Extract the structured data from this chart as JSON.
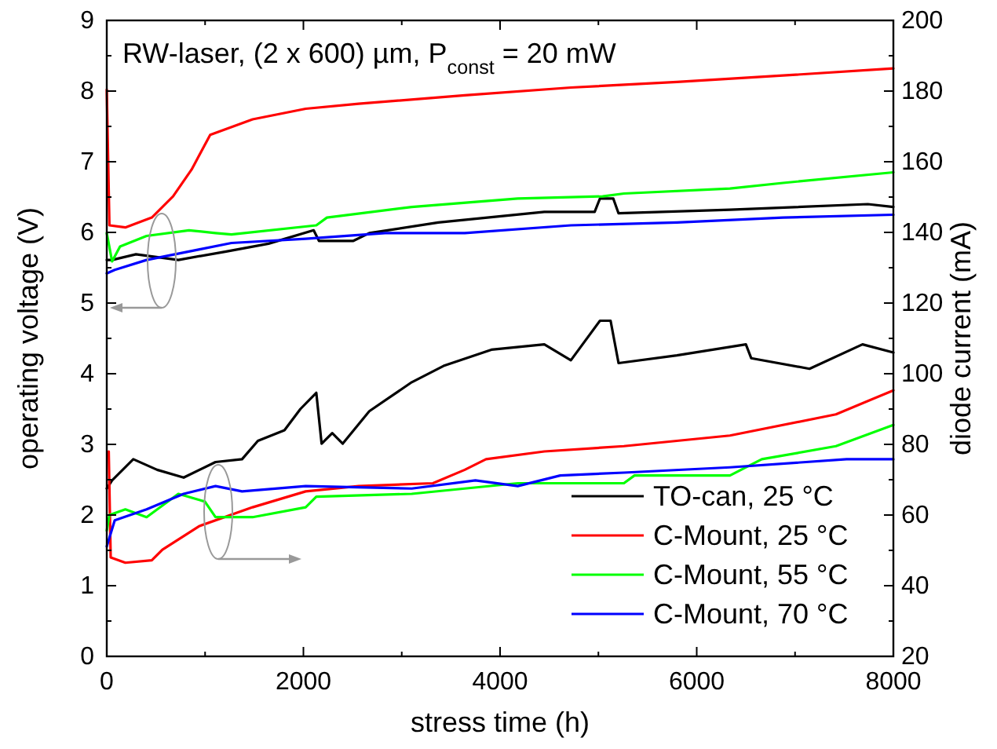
{
  "chart_data": {
    "type": "line",
    "xlabel": "stress time (h)",
    "ylabel": "operating voltage (V)",
    "y2label": "diode current (mA)",
    "annotations": [
      "RW-laser, (2 x 600) µm, P$_{const}$ = 20 mW"
    ],
    "xlim": [
      0,
      8000
    ],
    "xticks": [
      0,
      {
        "value": 1000,
        "label": null
      },
      2000,
      {
        "value": 3000,
        "label": null
      },
      4000,
      {
        "value": 5000,
        "label": null
      },
      6000,
      {
        "value": 7000,
        "label": null
      },
      8000
    ],
    "ylim": [
      0,
      9
    ],
    "yticks": [
      0,
      1,
      2,
      3,
      4,
      5,
      6,
      7,
      8,
      9
    ],
    "y2lim": [
      20,
      200
    ],
    "y2ticks": [
      20,
      40,
      60,
      80,
      100,
      120,
      140,
      160,
      180,
      200
    ],
    "legend": "bottom right",
    "grid": false,
    "line_style": "solid",
    "marker": "none",
    "series": [
      {
        "color": "#000000",
        "x": [
          0,
          54,
          297,
          728,
          1214,
          1645,
          2104,
          2158,
          2508,
          2670,
          3371,
          4450,
          4962,
          5016,
          5151,
          5205,
          6338,
          7740,
          8000
        ],
        "values": [
          5.61,
          5.61,
          5.69,
          5.61,
          5.73,
          5.84,
          6.03,
          5.88,
          5.88,
          5.99,
          6.14,
          6.29,
          6.29,
          6.48,
          6.48,
          6.27,
          6.32,
          6.4,
          6.36
        ]
      },
      {
        "color": "#ff0000",
        "x": [
          0,
          27,
          189,
          458,
          674,
          863,
          1052,
          1483,
          2023,
          2562,
          3641,
          4720,
          5799,
          6877,
          8000
        ],
        "values": [
          8.02,
          6.1,
          6.07,
          6.21,
          6.51,
          6.89,
          7.38,
          7.6,
          7.75,
          7.82,
          7.94,
          8.05,
          8.13,
          8.22,
          8.32
        ]
      },
      {
        "color": "#00ff00",
        "x": [
          0,
          54,
          135,
          405,
          836,
          1106,
          1268,
          2131,
          2239,
          3102,
          4180,
          5043,
          5259,
          6338,
          6877,
          8000
        ],
        "values": [
          5.99,
          5.59,
          5.8,
          5.95,
          6.03,
          5.99,
          5.97,
          6.1,
          6.21,
          6.36,
          6.48,
          6.51,
          6.55,
          6.62,
          6.7,
          6.85
        ]
      },
      {
        "color": "#0000ff",
        "x": [
          0,
          81,
          405,
          944,
          1268,
          2023,
          2832,
          3641,
          4720,
          5799,
          6877,
          8000
        ],
        "values": [
          5.42,
          5.47,
          5.61,
          5.76,
          5.85,
          5.91,
          5.99,
          5.99,
          6.1,
          6.14,
          6.21,
          6.25
        ]
      },
      {
        "name": "TO-can, 25 °C",
        "axis": "y2",
        "color": "#000000",
        "x": [
          0,
          54,
          270,
          512,
          782,
          1106,
          1376,
          1537,
          1807,
          1969,
          2131,
          2185,
          2293,
          2400,
          2670,
          3102,
          3425,
          3911,
          4450,
          4720,
          5016,
          5124,
          5205,
          5799,
          6500,
          6554,
          7147,
          7686,
          8000
        ],
        "values": [
          67.5,
          69.8,
          75.8,
          72.8,
          70.6,
          75,
          75.8,
          81,
          84,
          90,
          94.6,
          80.2,
          83.2,
          80.2,
          89.4,
          97.6,
          102.2,
          106.8,
          108.3,
          103.8,
          115,
          115,
          103,
          105.2,
          108.3,
          104.4,
          101.4,
          108.3,
          106
        ]
      },
      {
        "name": "C-Mount, 25 °C",
        "axis": "y2",
        "color": "#ff0000",
        "x": [
          20,
          40,
          189,
          458,
          566,
          944,
          1483,
          2023,
          2562,
          3317,
          3641,
          3857,
          4450,
          5259,
          6338,
          7416,
          8000
        ],
        "values": [
          78,
          48,
          46.5,
          47.2,
          50.2,
          56.9,
          62.2,
          66.7,
          68.2,
          69,
          72.8,
          75.8,
          78,
          79.5,
          82.5,
          88.5,
          95.3
        ]
      },
      {
        "name": "C-Mount, 55 °C",
        "axis": "y2",
        "color": "#00ff00",
        "x": [
          0,
          27,
          189,
          405,
          728,
          998,
          1106,
          1483,
          2023,
          2131,
          3102,
          4180,
          5259,
          5367,
          6338,
          6662,
          7416,
          8000
        ],
        "values": [
          55.6,
          60,
          61.6,
          59.4,
          66,
          63.8,
          59.4,
          59.4,
          62.2,
          65.2,
          66,
          69,
          69,
          71.2,
          71.2,
          75.8,
          79.5,
          85.5
        ]
      },
      {
        "name": "C-Mount, 70 °C",
        "axis": "y2",
        "color": "#0000ff",
        "x": [
          0,
          81,
          405,
          782,
          1106,
          1376,
          2023,
          3102,
          3749,
          4180,
          4612,
          5259,
          6338,
          7524,
          8000
        ],
        "values": [
          51.1,
          58.5,
          61.6,
          66,
          68.2,
          66.7,
          68.2,
          67.5,
          69.8,
          68.2,
          71.2,
          72,
          73.5,
          75.8,
          75.8
        ]
      }
    ]
  }
}
